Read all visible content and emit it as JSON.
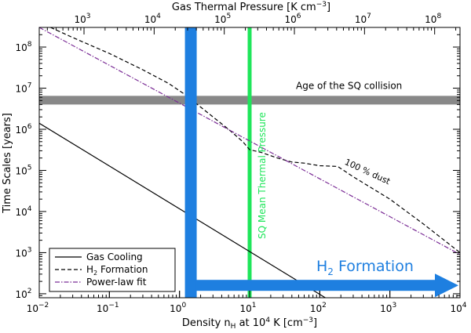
{
  "chart_data": {
    "type": "line",
    "x_scale": "log",
    "y_scale": "log",
    "xlim": [
      0.01,
      10000
    ],
    "ylim": [
      80,
      300000000
    ],
    "top_xlim": [
      230,
      230000000
    ],
    "xlabel_pre": "Density n",
    "xlabel_sub": "H",
    "xlabel_post": " at 10",
    "xlabel_sup": "4",
    "xlabel_unit": " K [cm",
    "xlabel_unit_sup": "−3",
    "xlabel_end": "]",
    "ylabel": "Time Scales [years]",
    "top_xlabel_pre": "Gas Thermal Pressure [K cm",
    "top_xlabel_sup": "−3",
    "top_xlabel_end": "]",
    "x_ticks": [
      {
        "value": 0.01,
        "base": "10",
        "exp": "−2"
      },
      {
        "value": 0.1,
        "base": "10",
        "exp": "−1"
      },
      {
        "value": 1,
        "base": "10",
        "exp": "0"
      },
      {
        "value": 10,
        "base": "10",
        "exp": "1"
      },
      {
        "value": 100,
        "base": "10",
        "exp": "2"
      },
      {
        "value": 1000,
        "base": "10",
        "exp": "3"
      },
      {
        "value": 10000,
        "base": "10",
        "exp": "4"
      }
    ],
    "y_ticks": [
      {
        "value": 100,
        "base": "10",
        "exp": "2"
      },
      {
        "value": 1000,
        "base": "10",
        "exp": "3"
      },
      {
        "value": 10000,
        "base": "10",
        "exp": "4"
      },
      {
        "value": 100000,
        "base": "10",
        "exp": "5"
      },
      {
        "value": 1000000,
        "base": "10",
        "exp": "6"
      },
      {
        "value": 10000000,
        "base": "10",
        "exp": "7"
      },
      {
        "value": 100000000,
        "base": "10",
        "exp": "8"
      }
    ],
    "top_ticks": [
      {
        "value": 1000,
        "base": "10",
        "exp": "3"
      },
      {
        "value": 10000,
        "base": "10",
        "exp": "4"
      },
      {
        "value": 100000,
        "base": "10",
        "exp": "5"
      },
      {
        "value": 1000000,
        "base": "10",
        "exp": "6"
      },
      {
        "value": 10000000,
        "base": "10",
        "exp": "7"
      },
      {
        "value": 100000000,
        "base": "10",
        "exp": "8"
      }
    ],
    "series": [
      {
        "name": "Gas Cooling",
        "style": "solid",
        "color": "#000000",
        "points": [
          [
            0.01,
            1400000
          ],
          [
            120,
            80
          ]
        ]
      },
      {
        "name_pre": "H",
        "name_sub": "2",
        "name_post": " Formation",
        "style": "dashed",
        "color": "#000000",
        "points": [
          [
            0.01,
            400000000
          ],
          [
            0.03,
            170000000
          ],
          [
            0.1,
            70000000
          ],
          [
            0.3,
            28000000
          ],
          [
            0.7,
            13000000
          ],
          [
            1.2,
            7000000
          ],
          [
            1.8,
            4000000
          ],
          [
            3,
            2000000
          ],
          [
            5,
            1000000
          ],
          [
            8,
            500000
          ],
          [
            10,
            320000
          ],
          [
            15,
            270000
          ],
          [
            25,
            200000
          ],
          [
            40,
            160000
          ],
          [
            60,
            150000
          ],
          [
            100,
            130000
          ],
          [
            180,
            125000
          ],
          [
            300,
            70000
          ],
          [
            1000,
            20000
          ],
          [
            3000,
            5000
          ],
          [
            10000,
            1000
          ]
        ]
      },
      {
        "name": "Power-law fit",
        "style": "dashdot",
        "color": "#7b2d96",
        "points": [
          [
            0.01,
            300000000
          ],
          [
            10000,
            900
          ]
        ]
      }
    ],
    "bands": [
      {
        "label": "Age of the SQ collision",
        "y_range": [
          4000000,
          6500000
        ],
        "color": "#888888"
      }
    ],
    "vertical_lines": [
      {
        "label": "SQ Mean Thermal Pressure",
        "x": 10,
        "color": "#1ee65a"
      },
      {
        "x": 1.45,
        "color": "#1e7fe0"
      }
    ],
    "arrow": {
      "label_pre": "H",
      "label_sub": "2",
      "label_post": " Formation",
      "x_start": 1.45,
      "x_end": 10000,
      "y": 160,
      "color": "#1e7fe0"
    },
    "annotations": [
      {
        "text": "100 % dust",
        "x": 200,
        "y": 150000
      }
    ],
    "legend_position": "bottom-left"
  }
}
